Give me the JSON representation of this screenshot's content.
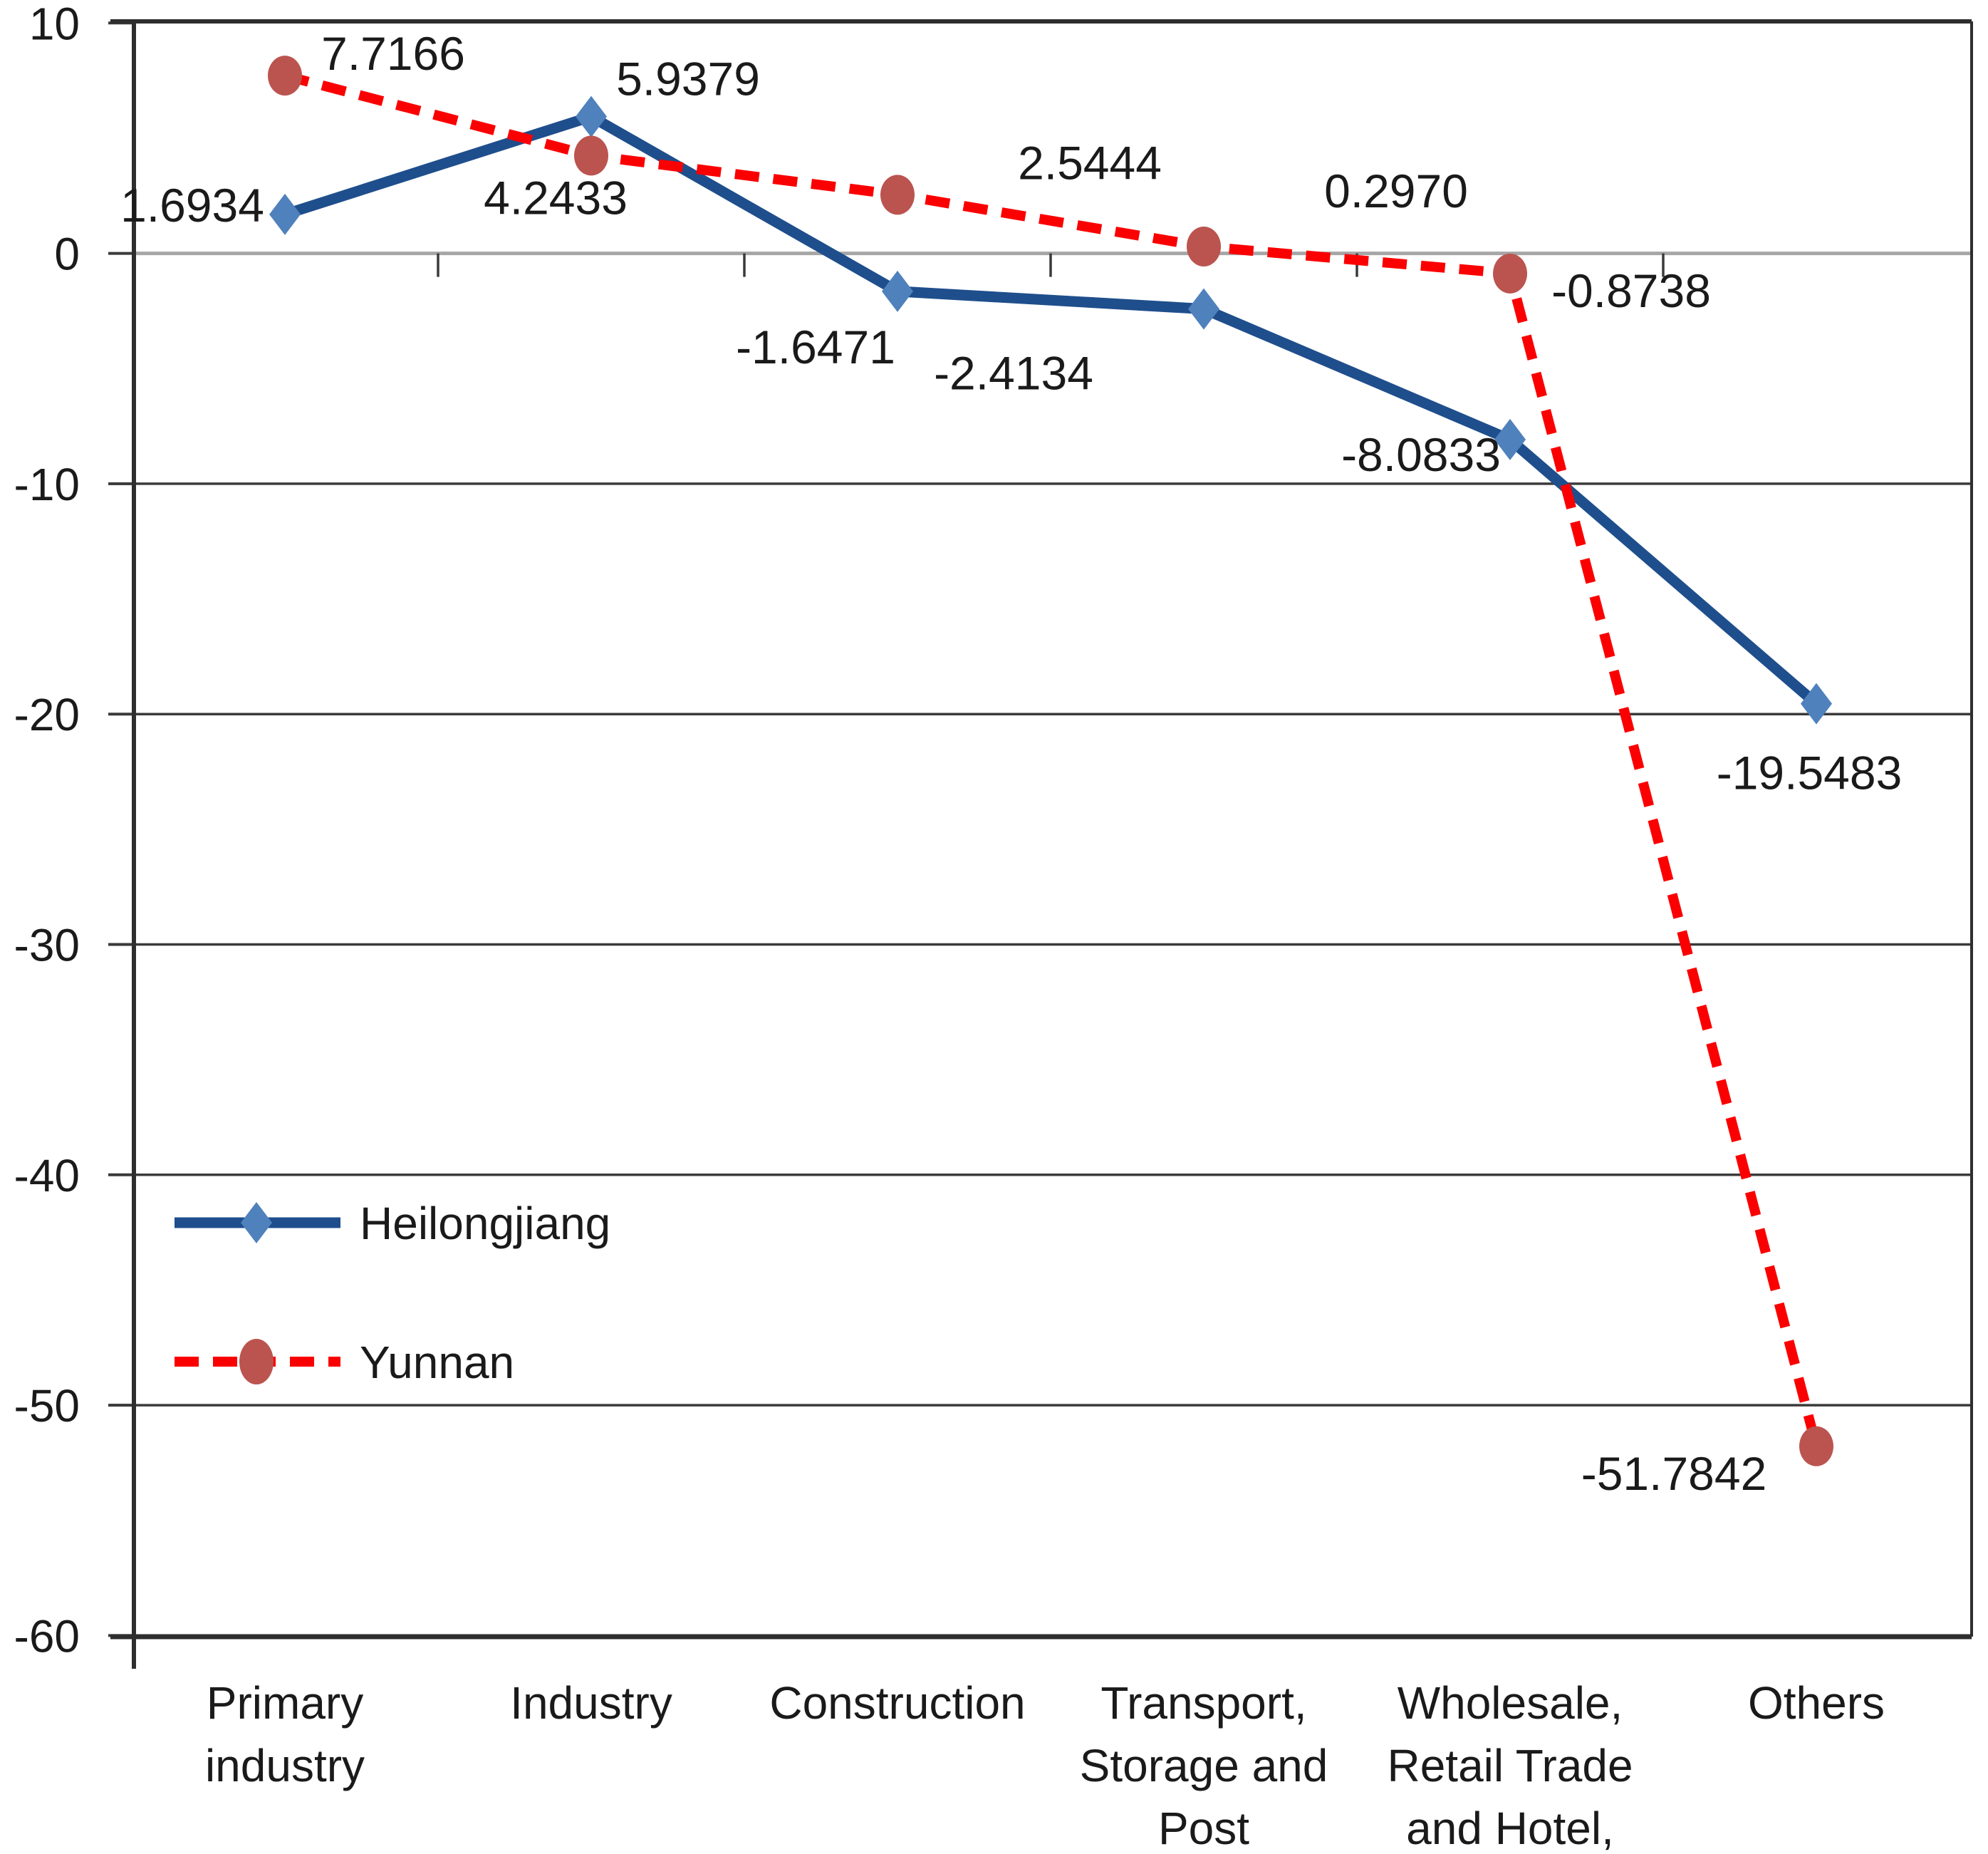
{
  "chart_data": {
    "type": "line",
    "title": "",
    "xlabel": "",
    "ylabel": "",
    "grid": true,
    "legend_position": "inside-bottom-left",
    "background_color": "#ffffff",
    "axis_colors": {
      "gridline": "#3a3a3a",
      "zero_line": "#a6a6a6",
      "border": "#2e2e2e",
      "tick": "#3a3a3a",
      "text": "#1a1a1a"
    },
    "y_axis": {
      "min": -60,
      "max": 10,
      "tick_step": 10,
      "ticks": [
        10,
        0,
        -10,
        -20,
        -30,
        -40,
        -50,
        -60
      ],
      "tick_labels": [
        "10",
        "0",
        "-10",
        "-20",
        "-30",
        "-40",
        "-50",
        "-60"
      ]
    },
    "categories": [
      [
        "Primary",
        "industry"
      ],
      [
        "Industry"
      ],
      [
        "Construction"
      ],
      [
        "Transport,",
        "Storage and",
        "Post"
      ],
      [
        "Wholesale,",
        "Retail Trade",
        "and Hotel,"
      ],
      [
        "Others"
      ]
    ],
    "series": [
      {
        "name": "Heilongjiang",
        "line_style": "solid",
        "marker": "diamond",
        "line_color": "#1f4e8c",
        "marker_color": "#4f81bd",
        "values": [
          1.6934,
          5.9379,
          -1.6471,
          -2.4134,
          -8.0833,
          -19.5483
        ],
        "labels": [
          "1.6934",
          "5.9379",
          "-1.6471",
          "-2.4134",
          "-8.0833",
          "-19.5483"
        ],
        "label_offsets": [
          [
            -130,
            -13
          ],
          [
            136,
            -53
          ],
          [
            -115,
            78
          ],
          [
            -267,
            90
          ],
          [
            -125,
            21
          ],
          [
            -10,
            97
          ]
        ]
      },
      {
        "name": "Yunnan",
        "line_style": "dashed",
        "marker": "circle",
        "line_color": "#fb0000",
        "marker_color": "#bb544f",
        "values": [
          7.7166,
          4.2433,
          2.5444,
          0.297,
          -0.8738,
          -51.7842
        ],
        "labels": [
          "7.7166",
          "4.2433",
          "2.5444",
          "0.2970",
          "-0.8738",
          "-51.7842"
        ],
        "label_offsets": [
          [
            152,
            -31
          ],
          [
            -50,
            59
          ],
          [
            270,
            -45
          ],
          [
            270,
            -78
          ],
          [
            170,
            24
          ],
          [
            -200,
            38
          ]
        ]
      }
    ]
  }
}
